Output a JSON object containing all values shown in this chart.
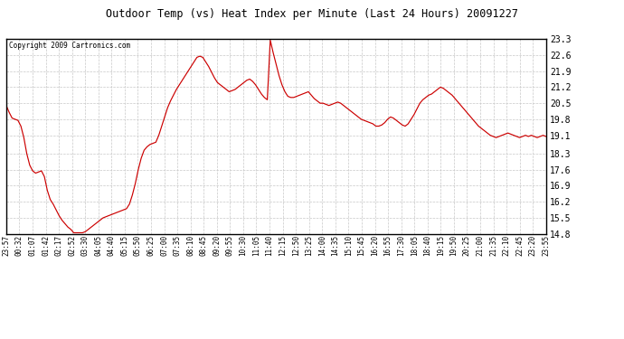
{
  "title": "Outdoor Temp (vs) Heat Index per Minute (Last 24 Hours) 20091227",
  "copyright": "Copyright 2009 Cartronics.com",
  "line_color": "#cc0000",
  "background_color": "#ffffff",
  "grid_color": "#c8c8c8",
  "ylim": [
    14.8,
    23.3
  ],
  "yticks": [
    14.8,
    15.5,
    16.2,
    16.9,
    17.6,
    18.3,
    19.1,
    19.8,
    20.5,
    21.2,
    21.9,
    22.6,
    23.3
  ],
  "xtick_labels": [
    "23:57",
    "00:32",
    "01:07",
    "01:42",
    "02:17",
    "02:52",
    "03:30",
    "04:05",
    "04:40",
    "05:15",
    "05:50",
    "06:25",
    "07:00",
    "07:35",
    "08:10",
    "08:45",
    "09:20",
    "09:55",
    "10:30",
    "11:05",
    "11:40",
    "12:15",
    "12:50",
    "13:25",
    "14:00",
    "14:35",
    "15:10",
    "15:45",
    "16:20",
    "16:55",
    "17:30",
    "18:05",
    "18:40",
    "19:15",
    "19:50",
    "20:25",
    "21:00",
    "21:35",
    "22:10",
    "22:45",
    "23:20",
    "23:55"
  ],
  "data_x_indices": [
    0,
    1,
    2,
    3,
    4,
    5,
    6,
    7,
    8,
    9,
    10,
    11,
    12,
    13,
    14,
    15,
    16,
    17,
    18,
    19,
    20,
    21,
    22,
    23,
    24,
    25,
    26,
    27,
    28,
    29,
    30,
    31,
    32,
    33,
    34,
    35,
    36,
    37,
    38,
    39,
    40,
    41
  ],
  "data_y": [
    20.4,
    20.1,
    19.85,
    19.8,
    19.75,
    19.5,
    19.0,
    18.3,
    17.8,
    17.55,
    17.45,
    17.5,
    17.55,
    17.3,
    16.7,
    16.3,
    16.1,
    15.85,
    15.6,
    15.4,
    15.25,
    15.1,
    15.0,
    14.85,
    14.85,
    14.85,
    14.85,
    14.9,
    15.0,
    15.1,
    15.2,
    15.3,
    15.4,
    15.5,
    15.55,
    15.6,
    15.65,
    15.7,
    15.75,
    15.8,
    15.85,
    15.9,
    16.1,
    16.5,
    17.0,
    17.6,
    18.1,
    18.45,
    18.6,
    18.7,
    18.75,
    18.8,
    19.1,
    19.5,
    19.9,
    20.3,
    20.6,
    20.85,
    21.1,
    21.3,
    21.5,
    21.7,
    21.9,
    22.1,
    22.3,
    22.5,
    22.55,
    22.5,
    22.3,
    22.1,
    21.85,
    21.6,
    21.4,
    21.3,
    21.2,
    21.1,
    21.0,
    21.05,
    21.1,
    21.2,
    21.3,
    21.4,
    21.5,
    21.55,
    21.45,
    21.3,
    21.1,
    20.9,
    20.75,
    20.65,
    23.25,
    22.7,
    22.2,
    21.7,
    21.3,
    21.0,
    20.8,
    20.75,
    20.75,
    20.8,
    20.85,
    20.9,
    20.95,
    21.0,
    20.85,
    20.7,
    20.6,
    20.5,
    20.5,
    20.45,
    20.4,
    20.45,
    20.5,
    20.55,
    20.5,
    20.4,
    20.3,
    20.2,
    20.1,
    20.0,
    19.9,
    19.8,
    19.75,
    19.7,
    19.65,
    19.6,
    19.5,
    19.5,
    19.55,
    19.65,
    19.8,
    19.9,
    19.85,
    19.75,
    19.65,
    19.55,
    19.5,
    19.6,
    19.8,
    20.0,
    20.25,
    20.5,
    20.65,
    20.75,
    20.85,
    20.9,
    21.0,
    21.1,
    21.2,
    21.15,
    21.05,
    20.95,
    20.85,
    20.7,
    20.55,
    20.4,
    20.25,
    20.1,
    19.95,
    19.8,
    19.65,
    19.5,
    19.4,
    19.3,
    19.2,
    19.1,
    19.05,
    19.0,
    19.05,
    19.1,
    19.15,
    19.2,
    19.15,
    19.1,
    19.05,
    19.0,
    19.05,
    19.1,
    19.05,
    19.1,
    19.05,
    19.0,
    19.05,
    19.1,
    19.05
  ]
}
